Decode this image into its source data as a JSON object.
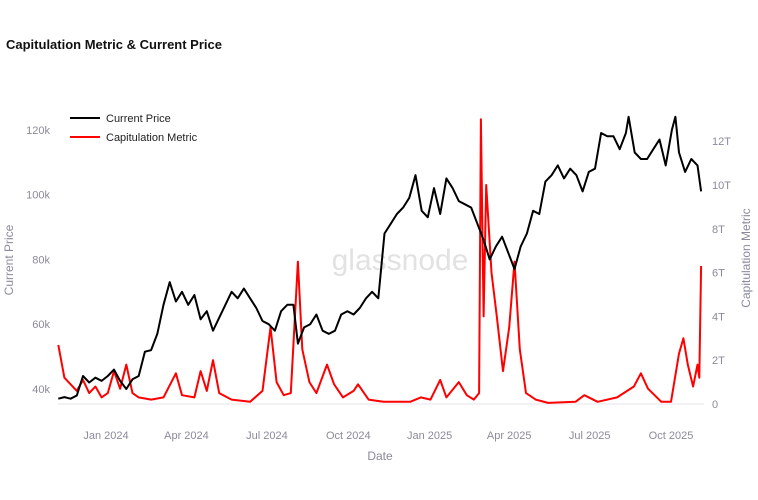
{
  "title": "Capitulation Metric & Current Price",
  "watermark": "glassnode",
  "chart_data": {
    "type": "line",
    "title": "Capitulation Metric & Current Price",
    "xlabel": "Date",
    "ylabel_left": "Current Price",
    "ylabel_right": "Capitulation Metric",
    "x_ticks": [
      {
        "label": "Jan 2024",
        "date": "2024-01-01"
      },
      {
        "label": "Apr 2024",
        "date": "2024-04-01"
      },
      {
        "label": "Jul 2024",
        "date": "2024-07-01"
      },
      {
        "label": "Oct 2024",
        "date": "2024-10-01"
      },
      {
        "label": "Jan 2025",
        "date": "2025-01-01"
      },
      {
        "label": "Apr 2025",
        "date": "2025-04-01"
      },
      {
        "label": "Jul 2025",
        "date": "2025-07-01"
      },
      {
        "label": "Oct 2025",
        "date": "2025-10-01"
      }
    ],
    "y_left_ticks": [
      {
        "label": "40k",
        "v": 40
      },
      {
        "label": "60k",
        "v": 60
      },
      {
        "label": "80k",
        "v": 80
      },
      {
        "label": "100k",
        "v": 100
      },
      {
        "label": "120k",
        "v": 120
      }
    ],
    "y_right_ticks": [
      {
        "label": "0",
        "v": 0
      },
      {
        "label": "2T",
        "v": 2
      },
      {
        "label": "4T",
        "v": 4
      },
      {
        "label": "6T",
        "v": 6
      },
      {
        "label": "8T",
        "v": 8
      },
      {
        "label": "10T",
        "v": 10
      },
      {
        "label": "12T",
        "v": 12
      }
    ],
    "legend_position": "top-left",
    "series": [
      {
        "name": "Current Price",
        "axis": "left",
        "unit": "k USD",
        "color": "#000000",
        "points": [
          [
            "2023-11-08",
            37
          ],
          [
            "2023-11-15",
            37.5
          ],
          [
            "2023-11-22",
            37
          ],
          [
            "2023-11-29",
            38
          ],
          [
            "2023-12-06",
            44
          ],
          [
            "2023-12-13",
            42
          ],
          [
            "2023-12-20",
            43.5
          ],
          [
            "2023-12-27",
            42.5
          ],
          [
            "2024-01-03",
            44
          ],
          [
            "2024-01-10",
            46
          ],
          [
            "2024-01-17",
            42.5
          ],
          [
            "2024-01-24",
            40
          ],
          [
            "2024-01-31",
            43
          ],
          [
            "2024-02-07",
            44
          ],
          [
            "2024-02-14",
            51.5
          ],
          [
            "2024-02-21",
            52
          ],
          [
            "2024-02-28",
            57
          ],
          [
            "2024-03-06",
            66
          ],
          [
            "2024-03-13",
            73
          ],
          [
            "2024-03-20",
            67
          ],
          [
            "2024-03-27",
            70
          ],
          [
            "2024-04-03",
            66
          ],
          [
            "2024-04-10",
            69
          ],
          [
            "2024-04-17",
            61.5
          ],
          [
            "2024-04-24",
            64
          ],
          [
            "2024-05-01",
            58
          ],
          [
            "2024-05-08",
            62
          ],
          [
            "2024-05-15",
            66
          ],
          [
            "2024-05-22",
            70
          ],
          [
            "2024-05-29",
            68
          ],
          [
            "2024-06-05",
            71
          ],
          [
            "2024-06-12",
            68
          ],
          [
            "2024-06-19",
            65
          ],
          [
            "2024-06-26",
            61
          ],
          [
            "2024-07-03",
            60
          ],
          [
            "2024-07-10",
            58
          ],
          [
            "2024-07-17",
            64
          ],
          [
            "2024-07-24",
            66
          ],
          [
            "2024-07-31",
            66
          ],
          [
            "2024-08-05",
            54
          ],
          [
            "2024-08-12",
            59
          ],
          [
            "2024-08-19",
            60
          ],
          [
            "2024-08-26",
            63
          ],
          [
            "2024-09-02",
            58
          ],
          [
            "2024-09-09",
            57
          ],
          [
            "2024-09-16",
            58
          ],
          [
            "2024-09-23",
            63
          ],
          [
            "2024-09-30",
            64
          ],
          [
            "2024-10-07",
            63
          ],
          [
            "2024-10-14",
            65
          ],
          [
            "2024-10-21",
            68
          ],
          [
            "2024-10-28",
            70
          ],
          [
            "2024-11-04",
            68
          ],
          [
            "2024-11-11",
            88
          ],
          [
            "2024-11-18",
            91
          ],
          [
            "2024-11-25",
            94
          ],
          [
            "2024-12-02",
            96
          ],
          [
            "2024-12-09",
            99
          ],
          [
            "2024-12-16",
            106
          ],
          [
            "2024-12-23",
            95
          ],
          [
            "2024-12-30",
            93
          ],
          [
            "2025-01-06",
            102
          ],
          [
            "2025-01-13",
            94
          ],
          [
            "2025-01-20",
            105
          ],
          [
            "2025-01-27",
            102
          ],
          [
            "2025-02-03",
            98
          ],
          [
            "2025-02-10",
            97
          ],
          [
            "2025-02-17",
            96
          ],
          [
            "2025-02-24",
            91
          ],
          [
            "2025-03-03",
            86
          ],
          [
            "2025-03-10",
            80
          ],
          [
            "2025-03-17",
            84
          ],
          [
            "2025-03-24",
            87
          ],
          [
            "2025-03-31",
            82
          ],
          [
            "2025-04-07",
            77
          ],
          [
            "2025-04-14",
            84
          ],
          [
            "2025-04-21",
            88
          ],
          [
            "2025-04-28",
            95
          ],
          [
            "2025-05-05",
            94
          ],
          [
            "2025-05-12",
            104
          ],
          [
            "2025-05-19",
            106
          ],
          [
            "2025-05-26",
            109
          ],
          [
            "2025-06-02",
            105
          ],
          [
            "2025-06-09",
            108
          ],
          [
            "2025-06-16",
            106
          ],
          [
            "2025-06-23",
            101
          ],
          [
            "2025-06-30",
            107
          ],
          [
            "2025-07-07",
            108
          ],
          [
            "2025-07-14",
            119
          ],
          [
            "2025-07-21",
            118
          ],
          [
            "2025-07-28",
            118
          ],
          [
            "2025-08-04",
            114
          ],
          [
            "2025-08-11",
            119
          ],
          [
            "2025-08-14",
            124
          ],
          [
            "2025-08-21",
            113
          ],
          [
            "2025-08-28",
            111
          ],
          [
            "2025-09-04",
            111
          ],
          [
            "2025-09-11",
            114
          ],
          [
            "2025-09-18",
            117
          ],
          [
            "2025-09-25",
            109
          ],
          [
            "2025-10-02",
            120
          ],
          [
            "2025-10-06",
            124
          ],
          [
            "2025-10-10",
            113
          ],
          [
            "2025-10-17",
            107
          ],
          [
            "2025-10-24",
            111
          ],
          [
            "2025-10-31",
            109
          ],
          [
            "2025-11-04",
            101
          ]
        ]
      },
      {
        "name": "Capitulation Metric",
        "axis": "right",
        "unit": "T",
        "color": "#ff0000",
        "points": [
          [
            "2023-11-08",
            2.7
          ],
          [
            "2023-11-15",
            1.2
          ],
          [
            "2023-11-22",
            0.9
          ],
          [
            "2023-11-29",
            0.6
          ],
          [
            "2023-12-06",
            1.1
          ],
          [
            "2023-12-13",
            0.5
          ],
          [
            "2023-12-20",
            0.8
          ],
          [
            "2023-12-27",
            0.3
          ],
          [
            "2024-01-03",
            0.5
          ],
          [
            "2024-01-10",
            1.5
          ],
          [
            "2024-01-17",
            0.7
          ],
          [
            "2024-01-24",
            1.8
          ],
          [
            "2024-01-31",
            0.5
          ],
          [
            "2024-02-07",
            0.3
          ],
          [
            "2024-02-21",
            0.2
          ],
          [
            "2024-03-06",
            0.3
          ],
          [
            "2024-03-20",
            1.4
          ],
          [
            "2024-03-27",
            0.4
          ],
          [
            "2024-04-10",
            0.3
          ],
          [
            "2024-04-17",
            1.5
          ],
          [
            "2024-04-24",
            0.6
          ],
          [
            "2024-05-01",
            2.0
          ],
          [
            "2024-05-08",
            0.5
          ],
          [
            "2024-05-22",
            0.2
          ],
          [
            "2024-06-12",
            0.1
          ],
          [
            "2024-06-26",
            0.6
          ],
          [
            "2024-07-05",
            3.5
          ],
          [
            "2024-07-12",
            1.0
          ],
          [
            "2024-07-20",
            0.4
          ],
          [
            "2024-07-28",
            0.5
          ],
          [
            "2024-08-05",
            6.5
          ],
          [
            "2024-08-10",
            2.5
          ],
          [
            "2024-08-18",
            1.0
          ],
          [
            "2024-08-26",
            0.5
          ],
          [
            "2024-09-07",
            1.8
          ],
          [
            "2024-09-15",
            0.9
          ],
          [
            "2024-09-25",
            0.3
          ],
          [
            "2024-10-07",
            0.6
          ],
          [
            "2024-10-12",
            0.9
          ],
          [
            "2024-10-24",
            0.2
          ],
          [
            "2024-11-10",
            0.1
          ],
          [
            "2024-12-10",
            0.1
          ],
          [
            "2024-12-22",
            0.3
          ],
          [
            "2025-01-02",
            0.2
          ],
          [
            "2025-01-13",
            1.1
          ],
          [
            "2025-01-20",
            0.3
          ],
          [
            "2025-02-03",
            1.0
          ],
          [
            "2025-02-12",
            0.4
          ],
          [
            "2025-02-20",
            0.2
          ],
          [
            "2025-02-26",
            0.5
          ],
          [
            "2025-02-28",
            13.0
          ],
          [
            "2025-03-03",
            4.0
          ],
          [
            "2025-03-06",
            10.0
          ],
          [
            "2025-03-12",
            6.0
          ],
          [
            "2025-03-18",
            4.0
          ],
          [
            "2025-03-25",
            1.5
          ],
          [
            "2025-04-01",
            3.5
          ],
          [
            "2025-04-07",
            6.5
          ],
          [
            "2025-04-13",
            2.5
          ],
          [
            "2025-04-20",
            0.5
          ],
          [
            "2025-05-01",
            0.2
          ],
          [
            "2025-05-15",
            0.05
          ],
          [
            "2025-06-15",
            0.1
          ],
          [
            "2025-06-25",
            0.4
          ],
          [
            "2025-07-10",
            0.1
          ],
          [
            "2025-08-01",
            0.3
          ],
          [
            "2025-08-20",
            0.8
          ],
          [
            "2025-08-28",
            1.4
          ],
          [
            "2025-09-05",
            0.7
          ],
          [
            "2025-09-20",
            0.1
          ],
          [
            "2025-10-01",
            0.1
          ],
          [
            "2025-10-10",
            2.3
          ],
          [
            "2025-10-15",
            3.0
          ],
          [
            "2025-10-20",
            1.8
          ],
          [
            "2025-10-26",
            0.8
          ],
          [
            "2025-10-31",
            1.8
          ],
          [
            "2025-11-02",
            1.2
          ],
          [
            "2025-11-04",
            6.3
          ]
        ]
      }
    ]
  }
}
